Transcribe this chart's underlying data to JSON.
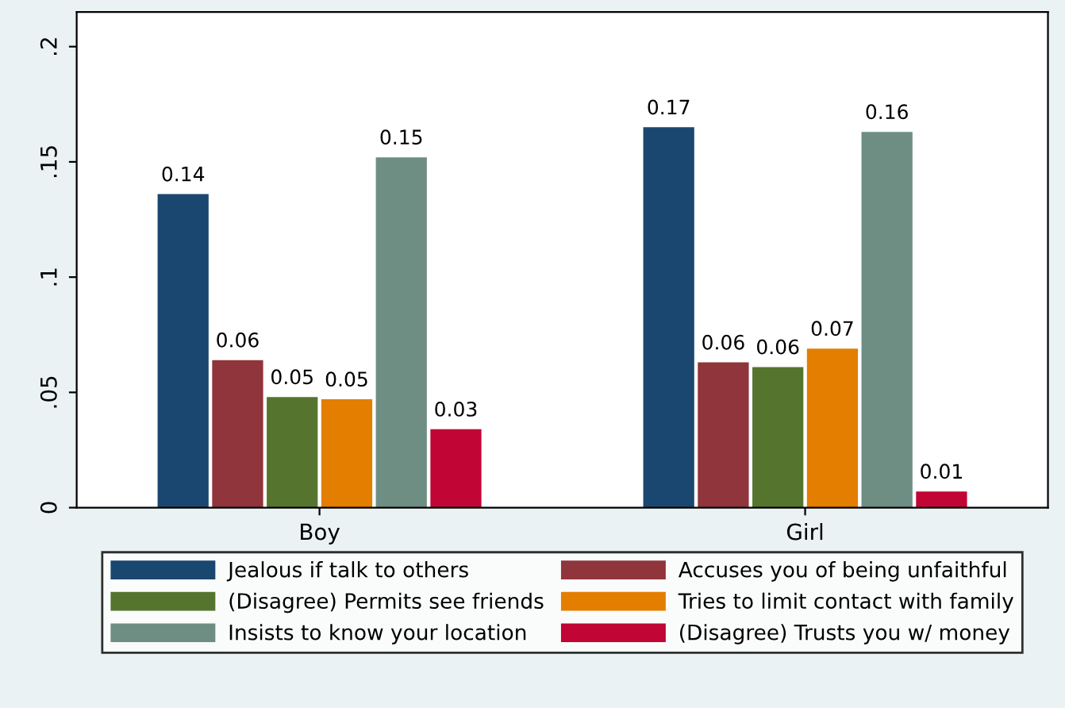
{
  "chart_data": {
    "type": "bar",
    "categories": [
      "Boy",
      "Girl"
    ],
    "series": [
      {
        "name": "Jealous if talk to others",
        "color": "#1a476f",
        "values": [
          0.136,
          0.165
        ],
        "value_labels": [
          "0.14",
          "0.17"
        ]
      },
      {
        "name": "Accuses you of being unfaithful",
        "color": "#90353b",
        "values": [
          0.064,
          0.063
        ],
        "value_labels": [
          "0.06",
          "0.06"
        ]
      },
      {
        "name": "(Disagree) Permits see friends",
        "color": "#55752f",
        "values": [
          0.048,
          0.061
        ],
        "value_labels": [
          "0.05",
          "0.06"
        ]
      },
      {
        "name": "Tries to limit contact with family",
        "color": "#e37e00",
        "values": [
          0.047,
          0.069
        ],
        "value_labels": [
          "0.05",
          "0.07"
        ]
      },
      {
        "name": "Insists to know your location",
        "color": "#6e8e84",
        "values": [
          0.152,
          0.163
        ],
        "value_labels": [
          "0.15",
          "0.16"
        ]
      },
      {
        "name": "(Disagree) Trusts you w/ money",
        "color": "#c10534",
        "values": [
          0.034,
          0.007
        ],
        "value_labels": [
          "0.03",
          "0.01"
        ]
      }
    ],
    "ylim": [
      0,
      0.215
    ],
    "yticks": [
      {
        "value": 0,
        "label": "0"
      },
      {
        "value": 0.05,
        "label": ".05"
      },
      {
        "value": 0.1,
        "label": ".1"
      },
      {
        "value": 0.15,
        "label": ".15"
      },
      {
        "value": 0.2,
        "label": ".2"
      }
    ],
    "grid": false,
    "legend": "bottom"
  }
}
